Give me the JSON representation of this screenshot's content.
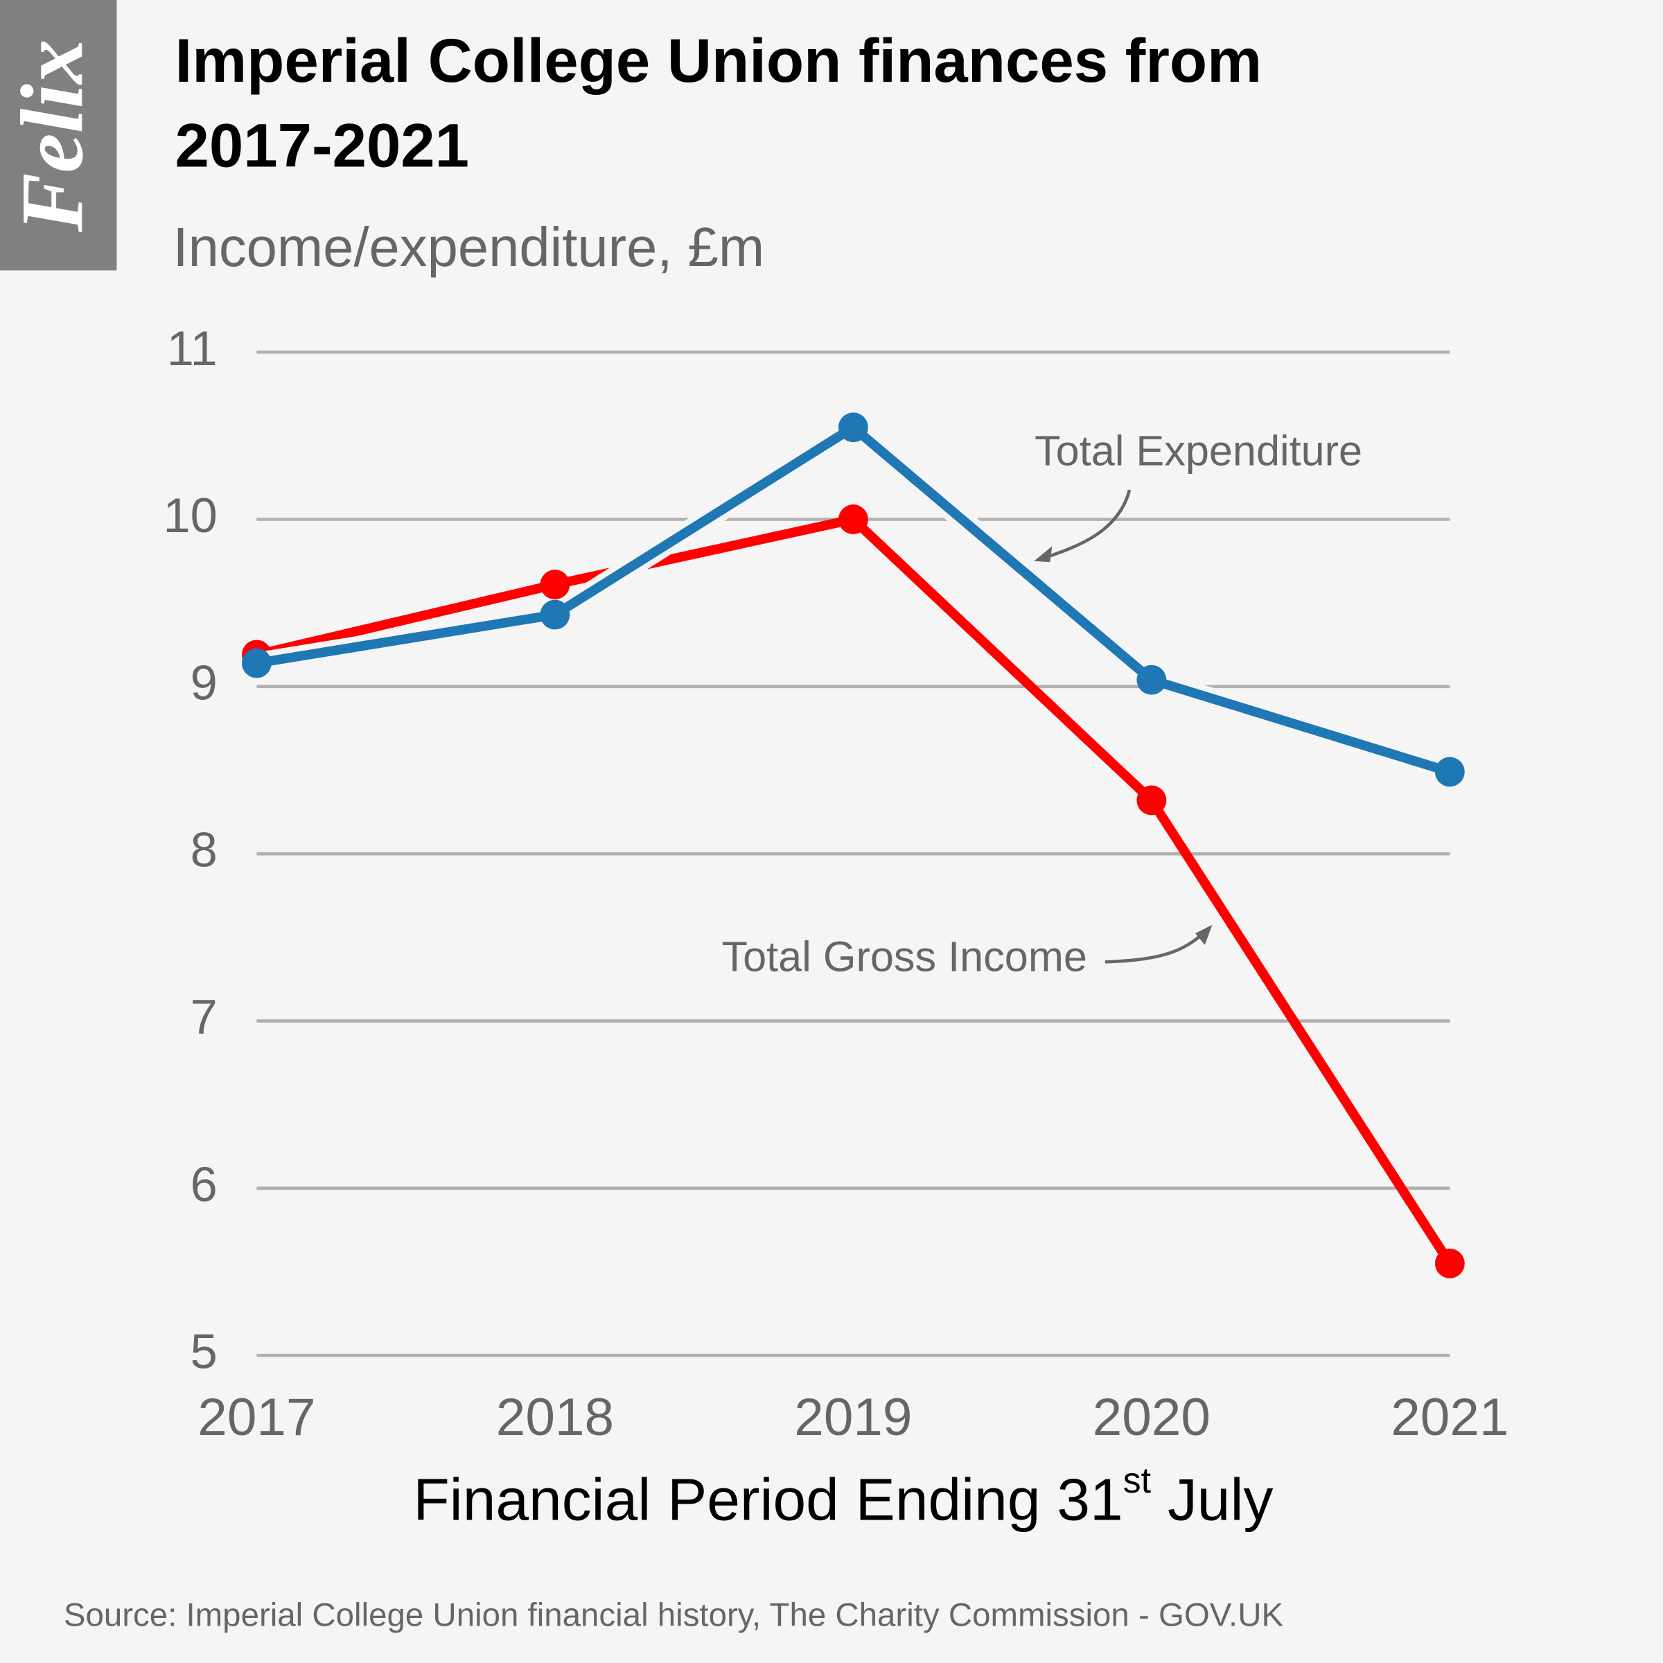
{
  "brand": "Felix",
  "chart_data": {
    "type": "line",
    "title": "Imperial College Union finances from 2017-2021",
    "subtitle": "Income/expenditure, £m",
    "x_label_parts": [
      "Financial Period Ending 31",
      "st",
      " July"
    ],
    "source": "Source: Imperial College Union financial history, The Charity Commission - GOV.UK",
    "categories": [
      "2017",
      "2018",
      "2019",
      "2020",
      "2021"
    ],
    "series": [
      {
        "name": "Total Gross Income",
        "color": "#ff0000",
        "values": [
          9.19,
          9.61,
          10.0,
          8.32,
          5.55
        ]
      },
      {
        "name": "Total Expenditure",
        "color": "#1f77b4",
        "values": [
          9.14,
          9.43,
          10.55,
          9.04,
          8.49
        ]
      }
    ],
    "ylim": [
      5,
      11
    ],
    "yticks": [
      5,
      6,
      7,
      8,
      9,
      10,
      11
    ],
    "grid": true
  }
}
